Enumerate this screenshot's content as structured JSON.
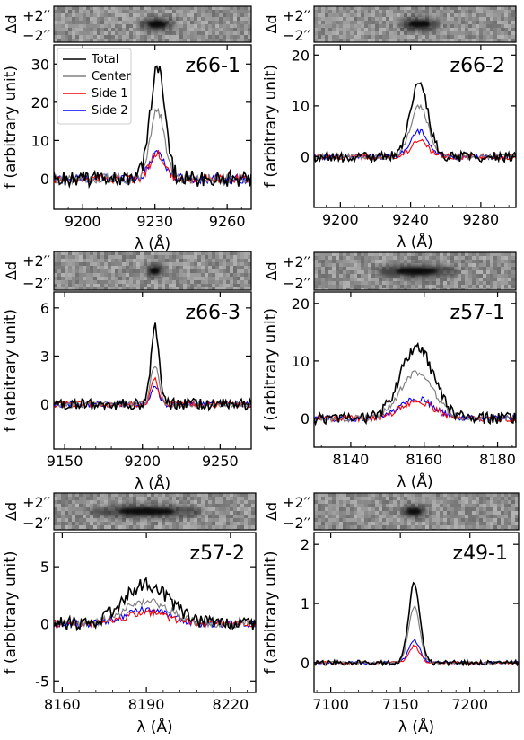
{
  "strip_labels": {
    "side_label": "Δd",
    "top": "+2′′",
    "bottom": "−2′′"
  },
  "legend": {
    "entries": [
      {
        "label": "Total",
        "color": "#000000"
      },
      {
        "label": "Center",
        "color": "#808080"
      },
      {
        "label": "Side 1",
        "color": "#ff0000"
      },
      {
        "label": "Side 2",
        "color": "#0000ff"
      }
    ]
  },
  "chart_data": [
    {
      "type": "line",
      "name": "z66-1",
      "xlabel": "λ (Å)",
      "ylabel": "f (arbitrary unit)",
      "xlim": [
        9188,
        9270
      ],
      "ylim": [
        -8,
        35
      ],
      "xticks": [
        9200,
        9230,
        9260
      ],
      "yticks": [
        0,
        10,
        20,
        30
      ],
      "peak_x": 9231,
      "sigma": 3,
      "noise": 2.2,
      "series": [
        {
          "name": "Total",
          "peak": 29
        },
        {
          "name": "Center",
          "peak": 18
        },
        {
          "name": "Side 1",
          "peak": 6.5
        },
        {
          "name": "Side 2",
          "peak": 7
        }
      ]
    },
    {
      "type": "line",
      "name": "z66-2",
      "xlabel": "λ (Å)",
      "ylabel": "f (arbitrary unit)",
      "xlim": [
        9185,
        9300
      ],
      "ylim": [
        -10,
        22
      ],
      "xticks": [
        9200,
        9240,
        9280
      ],
      "yticks": [
        0,
        10,
        20
      ],
      "peak_x": 9245,
      "sigma": 5,
      "noise": 1.0,
      "series": [
        {
          "name": "Total",
          "peak": 14.5
        },
        {
          "name": "Center",
          "peak": 10
        },
        {
          "name": "Side 1",
          "peak": 3
        },
        {
          "name": "Side 2",
          "peak": 5
        }
      ]
    },
    {
      "type": "line",
      "name": "z66-3",
      "xlabel": "λ (Å)",
      "ylabel": "f (arbitrary unit)",
      "xlim": [
        9143,
        9270
      ],
      "ylim": [
        -2.8,
        7
      ],
      "xticks": [
        9150,
        9200,
        9250
      ],
      "yticks": [
        0,
        3,
        6
      ],
      "peak_x": 9208,
      "sigma": 2.5,
      "noise": 0.35,
      "series": [
        {
          "name": "Total",
          "peak": 4.8
        },
        {
          "name": "Center",
          "peak": 2.5
        },
        {
          "name": "Side 1",
          "peak": 1.5
        },
        {
          "name": "Side 2",
          "peak": 1.2
        }
      ]
    },
    {
      "type": "line",
      "name": "z57-1",
      "xlabel": "λ (Å)",
      "ylabel": "f (arbitrary unit)",
      "xlim": [
        8130,
        8185
      ],
      "ylim": [
        -5,
        22
      ],
      "xticks": [
        8140,
        8160,
        8180
      ],
      "yticks": [
        0,
        10,
        20
      ],
      "peak_x": 8158,
      "sigma": 4.5,
      "noise": 1.0,
      "series": [
        {
          "name": "Total",
          "peak": 12.5
        },
        {
          "name": "Center",
          "peak": 8
        },
        {
          "name": "Side 1",
          "peak": 3
        },
        {
          "name": "Side 2",
          "peak": 3.5
        }
      ]
    },
    {
      "type": "line",
      "name": "z57-2",
      "xlabel": "λ (Å)",
      "ylabel": "f (arbitrary unit)",
      "xlim": [
        8157,
        8229
      ],
      "ylim": [
        -6,
        8
      ],
      "xticks": [
        8160,
        8190,
        8220
      ],
      "yticks": [
        -5,
        0,
        5
      ],
      "peak_x": 8190,
      "sigma": 8,
      "noise": 0.6,
      "series": [
        {
          "name": "Total",
          "peak": 3.5
        },
        {
          "name": "Center",
          "peak": 2
        },
        {
          "name": "Side 1",
          "peak": 1
        },
        {
          "name": "Side 2",
          "peak": 1.2
        }
      ]
    },
    {
      "type": "line",
      "name": "z49-1",
      "xlabel": "λ (Å)",
      "ylabel": "f (arbitrary unit)",
      "xlim": [
        7088,
        7235
      ],
      "ylim": [
        -0.5,
        2.2
      ],
      "xticks": [
        7100,
        7150,
        7200
      ],
      "yticks": [
        0,
        1,
        2
      ],
      "peak_x": 7160,
      "sigma": 4,
      "noise": 0.04,
      "series": [
        {
          "name": "Total",
          "peak": 1.35
        },
        {
          "name": "Center",
          "peak": 0.95
        },
        {
          "name": "Side 1",
          "peak": 0.28
        },
        {
          "name": "Side 2",
          "peak": 0.38
        }
      ]
    }
  ]
}
